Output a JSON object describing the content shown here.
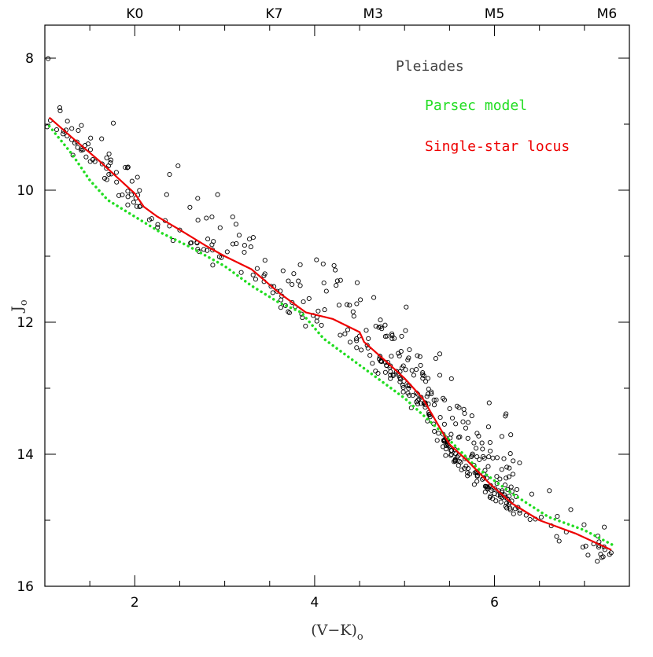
{
  "chart_data": {
    "type": "scatter",
    "xlabel": "(V−K)",
    "xlabel_sub": "o",
    "ylabel": "J",
    "ylabel_sub": "o",
    "xlim": [
      1.0,
      7.5
    ],
    "ylim": [
      16,
      7.5
    ],
    "y_inverted": true,
    "x_major_ticks": [
      2,
      4,
      6
    ],
    "x_minor_ticks": [
      1.5,
      2.5,
      3,
      3.5,
      4.5,
      5,
      5.5,
      6.5,
      7
    ],
    "y_major_ticks": [
      8,
      10,
      12,
      14,
      16
    ],
    "y_minor_ticks": [
      9,
      11,
      13,
      15
    ],
    "spectral_types": [
      {
        "label": "K0",
        "x": 2.0
      },
      {
        "label": "K7",
        "x": 3.55
      },
      {
        "label": "M3",
        "x": 4.65
      },
      {
        "label": "M5",
        "x": 6.0
      },
      {
        "label": "M6",
        "x": 7.25
      }
    ],
    "annotation": {
      "text": "Pleiades",
      "color": "#444444"
    },
    "series": [
      {
        "name": "Parsec model",
        "style": "dotted-line",
        "color": "#22dd22",
        "points": [
          [
            1.05,
            9.03
          ],
          [
            1.3,
            9.45
          ],
          [
            1.5,
            9.85
          ],
          [
            1.7,
            10.15
          ],
          [
            2.0,
            10.4
          ],
          [
            2.3,
            10.65
          ],
          [
            2.6,
            10.85
          ],
          [
            3.0,
            11.15
          ],
          [
            3.3,
            11.45
          ],
          [
            3.6,
            11.7
          ],
          [
            3.85,
            11.85
          ],
          [
            4.1,
            12.25
          ],
          [
            4.5,
            12.65
          ],
          [
            5.0,
            13.15
          ],
          [
            5.4,
            13.65
          ],
          [
            5.8,
            14.2
          ],
          [
            6.2,
            14.6
          ],
          [
            6.6,
            14.95
          ],
          [
            7.0,
            15.15
          ],
          [
            7.35,
            15.4
          ]
        ]
      },
      {
        "name": "Single-star locus",
        "style": "solid-line",
        "color": "#ee0000",
        "points": [
          [
            1.05,
            8.9
          ],
          [
            1.3,
            9.2
          ],
          [
            1.6,
            9.55
          ],
          [
            1.8,
            9.8
          ],
          [
            2.0,
            10.05
          ],
          [
            2.1,
            10.25
          ],
          [
            2.25,
            10.4
          ],
          [
            2.5,
            10.6
          ],
          [
            2.8,
            10.85
          ],
          [
            3.0,
            11.0
          ],
          [
            3.3,
            11.2
          ],
          [
            3.6,
            11.55
          ],
          [
            3.9,
            11.85
          ],
          [
            4.2,
            11.95
          ],
          [
            4.5,
            12.15
          ],
          [
            4.55,
            12.3
          ],
          [
            4.8,
            12.6
          ],
          [
            5.0,
            12.85
          ],
          [
            5.2,
            13.15
          ],
          [
            5.35,
            13.5
          ],
          [
            5.5,
            13.85
          ],
          [
            5.7,
            14.1
          ],
          [
            5.95,
            14.45
          ],
          [
            6.2,
            14.75
          ],
          [
            6.5,
            15.0
          ],
          [
            6.9,
            15.2
          ],
          [
            7.3,
            15.45
          ]
        ]
      },
      {
        "name": "Pleiades members",
        "style": "open-circle",
        "color": "#000000",
        "points": []
      }
    ]
  }
}
